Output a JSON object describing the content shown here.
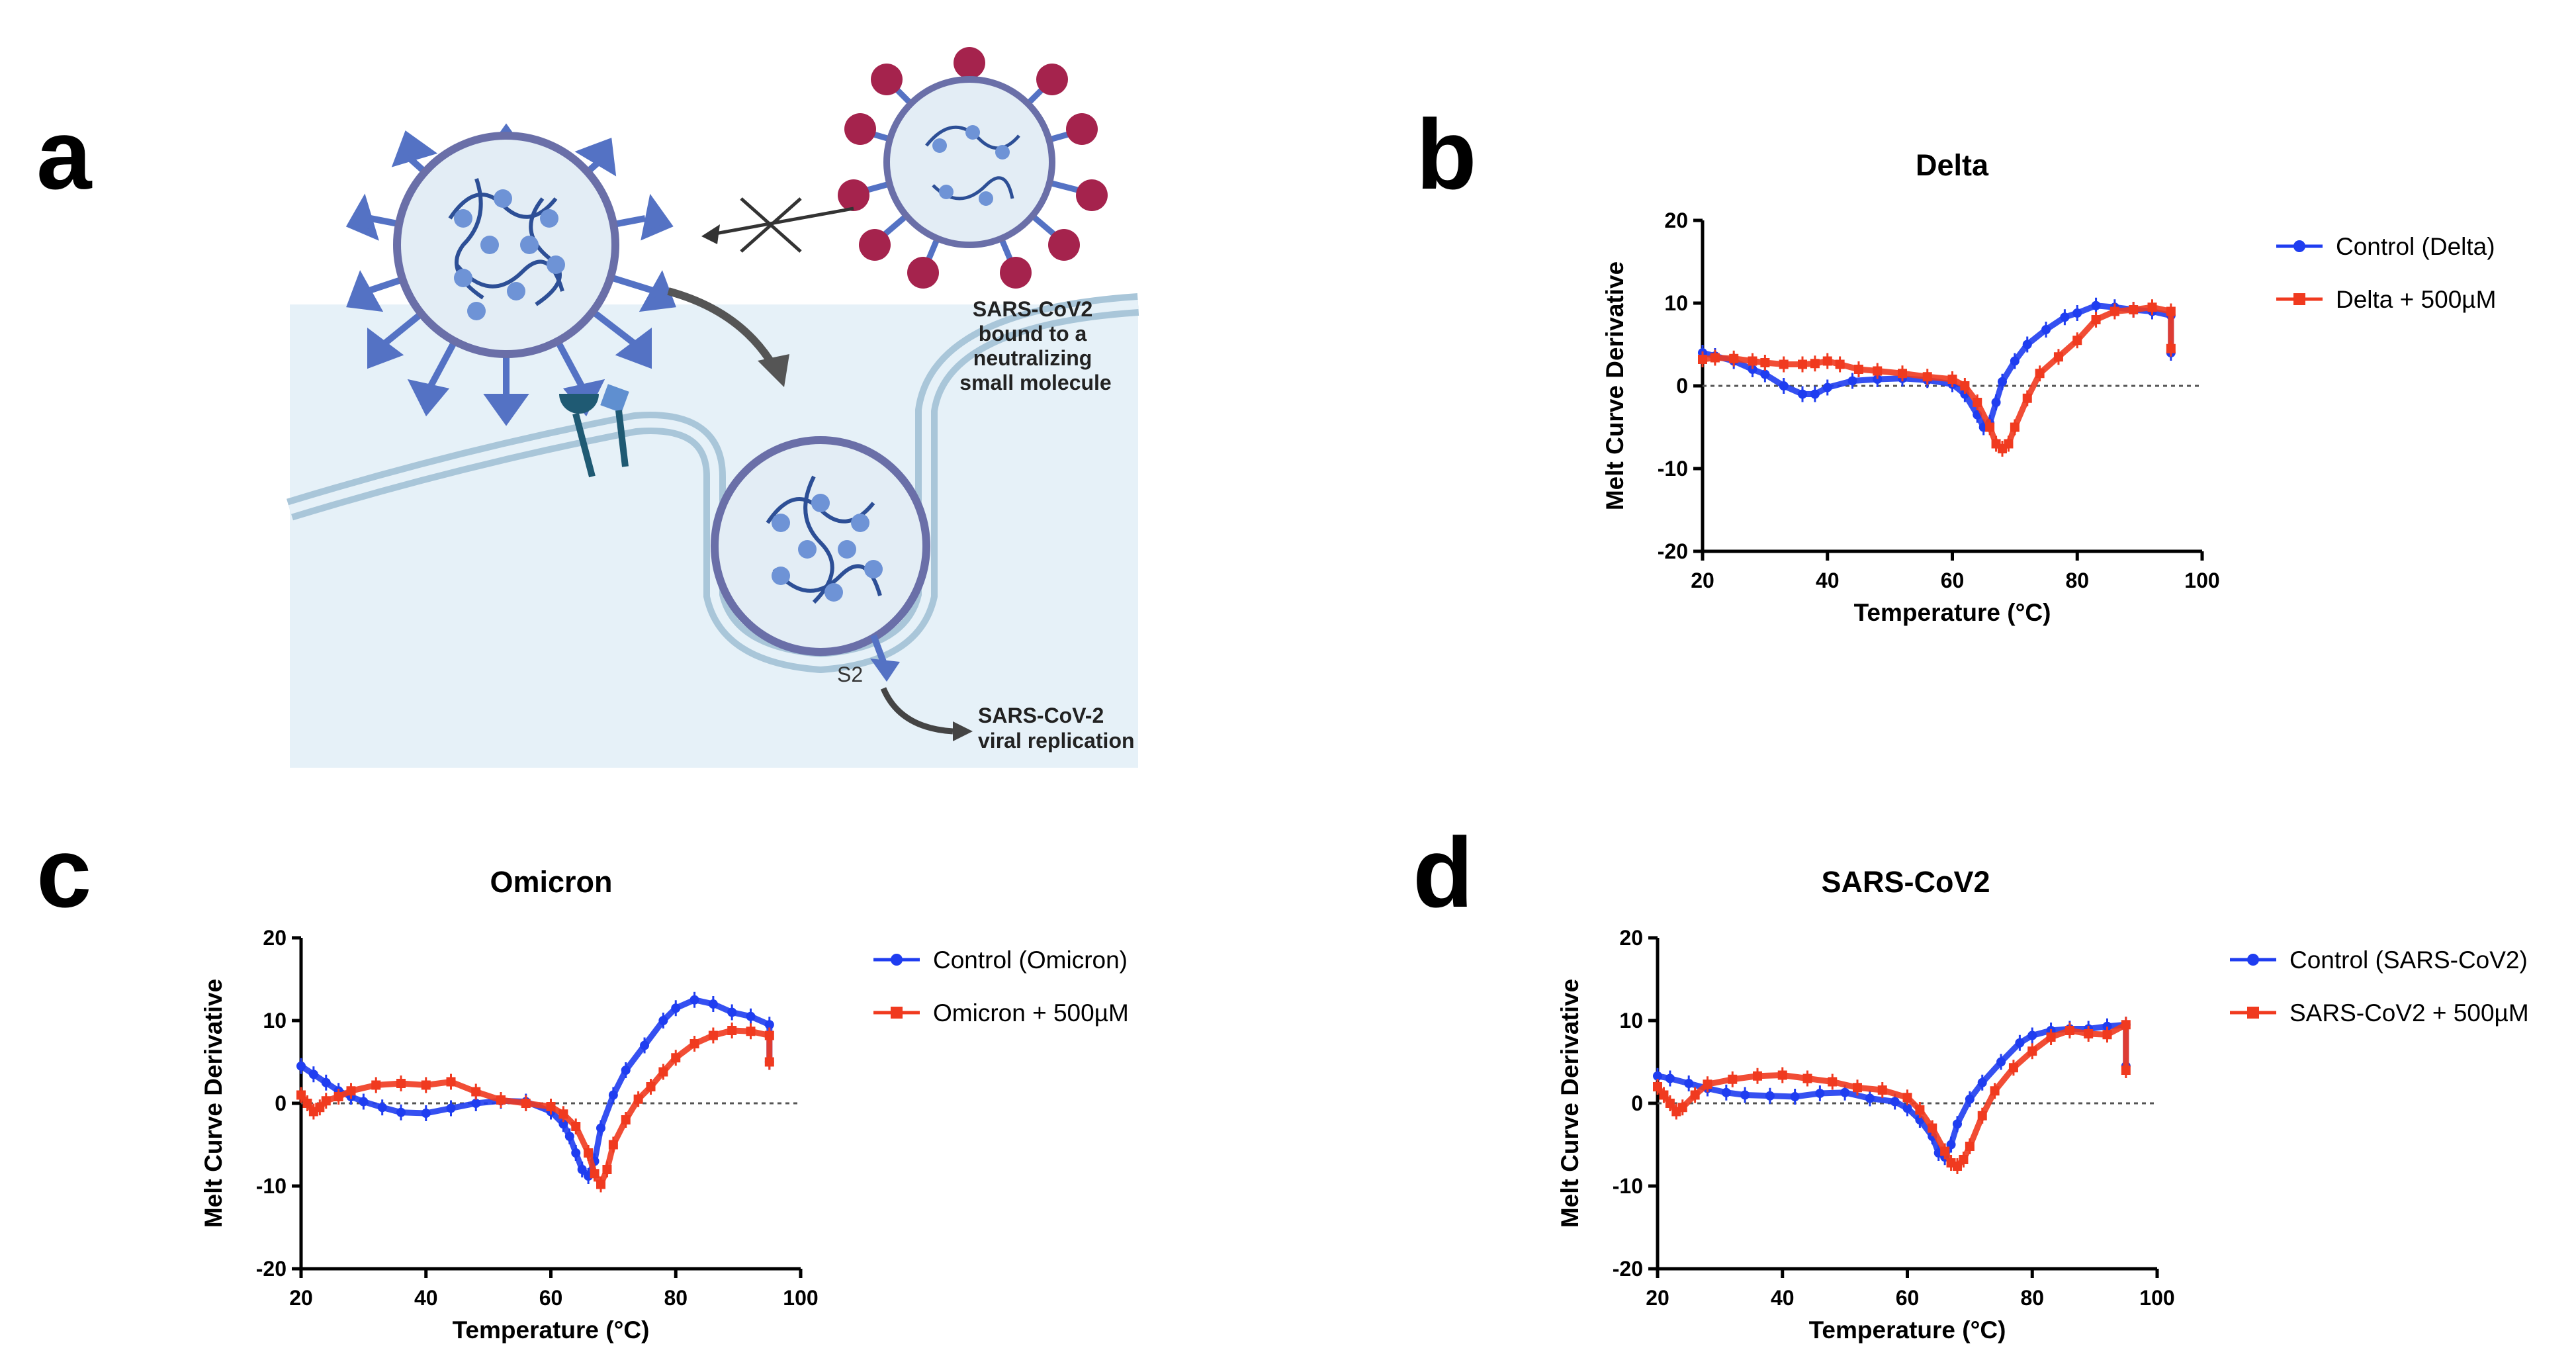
{
  "panel_letters": [
    "a",
    "b",
    "c",
    "d"
  ],
  "diagram": {
    "label_neutralized_lines": [
      "SARS-CoV2",
      "bound to a",
      "neutralizing",
      "small molecule"
    ],
    "label_s2": "S2",
    "label_replication_lines": [
      "SARS-CoV-2",
      "viral replication"
    ],
    "colors": {
      "membrane": "#a9c6d9",
      "cell_fill": "#e6f1f8",
      "virus_body": "#e3edf5",
      "spike": "#5472c4",
      "molecule": "#a5234d",
      "receptor": "#1f5a73"
    }
  },
  "colors": {
    "control": "#1f3df0",
    "treated": "#f03a1f",
    "zero_line": "#555555"
  },
  "chart_data": [
    {
      "panel": "b",
      "type": "line",
      "title": "Delta",
      "xlabel": "Temperature (°C)",
      "ylabel": "Melt Curve Derivative",
      "xlim": [
        20,
        100
      ],
      "ylim": [
        -20,
        20
      ],
      "xticks": [
        20,
        40,
        60,
        80,
        100
      ],
      "yticks": [
        -20,
        -10,
        0,
        10,
        20
      ],
      "zero_line": true,
      "legend_position": "right",
      "series": [
        {
          "name": "Control (Delta)",
          "color": "#1f3df0",
          "marker": "circle",
          "x": [
            20,
            22,
            25,
            28,
            30,
            33,
            36,
            38,
            40,
            44,
            48,
            52,
            56,
            60,
            62,
            64,
            65,
            66,
            67,
            68,
            70,
            72,
            75,
            78,
            80,
            83,
            86,
            89,
            92,
            95,
            95
          ],
          "y": [
            4,
            3.6,
            3,
            2,
            1.4,
            0,
            -1,
            -1,
            -0.2,
            0.6,
            0.8,
            0.9,
            0.7,
            0.2,
            -1,
            -3.5,
            -5,
            -4.5,
            -2,
            0.5,
            3,
            5,
            6.8,
            8.3,
            8.8,
            9.7,
            9.5,
            9.2,
            9,
            8.5,
            4
          ]
        },
        {
          "name": "Delta + 500µM",
          "color": "#f03a1f",
          "marker": "square",
          "x": [
            20,
            22,
            25,
            28,
            30,
            33,
            36,
            38,
            40,
            42,
            45,
            48,
            52,
            56,
            60,
            62,
            64,
            66,
            67,
            68,
            69,
            70,
            72,
            74,
            77,
            80,
            83,
            86,
            89,
            92,
            95,
            95
          ],
          "y": [
            3.2,
            3.4,
            3.3,
            3,
            2.8,
            2.6,
            2.6,
            2.7,
            3,
            2.6,
            2,
            1.8,
            1.5,
            1.1,
            0.8,
            0,
            -2,
            -5,
            -7,
            -7.6,
            -7,
            -5,
            -1.5,
            1.5,
            3.5,
            5.5,
            8,
            9,
            9.2,
            9.5,
            9,
            4.5
          ]
        }
      ]
    },
    {
      "panel": "c",
      "type": "line",
      "title": "Omicron",
      "xlabel": "Temperature (°C)",
      "ylabel": "Melt Curve Derivative",
      "xlim": [
        20,
        100
      ],
      "ylim": [
        -20,
        20
      ],
      "xticks": [
        20,
        40,
        60,
        80,
        100
      ],
      "yticks": [
        -20,
        -10,
        0,
        10,
        20
      ],
      "zero_line": true,
      "legend_position": "right",
      "series": [
        {
          "name": "Control (Omicron)",
          "color": "#1f3df0",
          "marker": "circle",
          "x": [
            20,
            22,
            24,
            26,
            28,
            30,
            33,
            36,
            40,
            44,
            48,
            52,
            56,
            60,
            62,
            63,
            64,
            65,
            66,
            67,
            68,
            70,
            72,
            75,
            78,
            80,
            83,
            86,
            89,
            92,
            95,
            95
          ],
          "y": [
            4.5,
            3.5,
            2.5,
            1.5,
            0.8,
            0.2,
            -0.5,
            -1.1,
            -1.2,
            -0.6,
            0,
            0.3,
            0.2,
            -1,
            -2.5,
            -4,
            -6,
            -8,
            -8.8,
            -7,
            -3,
            1,
            4,
            7,
            10,
            11.5,
            12.5,
            12,
            11,
            10.5,
            9.5,
            5
          ]
        },
        {
          "name": "Omicron + 500µM",
          "color": "#f03a1f",
          "marker": "square",
          "x": [
            20,
            21,
            22,
            23,
            24,
            26,
            28,
            32,
            36,
            40,
            44,
            48,
            52,
            56,
            60,
            62,
            64,
            66,
            67,
            68,
            69,
            70,
            72,
            74,
            76,
            78,
            80,
            83,
            86,
            89,
            92,
            95,
            95
          ],
          "y": [
            1,
            0,
            -1,
            -0.5,
            0.3,
            0.8,
            1.5,
            2.2,
            2.4,
            2.2,
            2.6,
            1.4,
            0.4,
            0,
            -0.4,
            -1.3,
            -2.8,
            -6,
            -8.5,
            -9.8,
            -8,
            -5,
            -2,
            0.5,
            2,
            3.8,
            5.5,
            7.2,
            8.2,
            8.8,
            8.7,
            8.2,
            5
          ]
        }
      ]
    },
    {
      "panel": "d",
      "type": "line",
      "title": "SARS-CoV2",
      "xlabel": "Temperature (°C)",
      "ylabel": "Melt Curve Derivative",
      "xlim": [
        20,
        100
      ],
      "ylim": [
        -20,
        20
      ],
      "xticks": [
        20,
        40,
        60,
        80,
        100
      ],
      "yticks": [
        -20,
        -10,
        0,
        10,
        20
      ],
      "zero_line": true,
      "legend_position": "right",
      "series": [
        {
          "name": "Control (SARS-CoV2)",
          "color": "#1f3df0",
          "marker": "circle",
          "x": [
            20,
            22,
            25,
            28,
            31,
            34,
            38,
            42,
            46,
            50,
            54,
            58,
            60,
            62,
            64,
            65,
            66,
            67,
            68,
            70,
            72,
            75,
            78,
            80,
            83,
            86,
            89,
            92,
            95,
            95
          ],
          "y": [
            3.3,
            3,
            2.4,
            1.8,
            1.3,
            1,
            0.9,
            0.8,
            1.2,
            1.3,
            0.6,
            0.2,
            -0.6,
            -2,
            -4,
            -6,
            -6.5,
            -5,
            -2.5,
            0.5,
            2.5,
            5,
            7.3,
            8.2,
            8.8,
            9,
            9,
            9.3,
            9.5,
            4.5
          ]
        },
        {
          "name": "SARS-CoV2 + 500µM",
          "color": "#f03a1f",
          "marker": "square",
          "x": [
            20,
            21,
            22,
            23,
            24,
            26,
            28,
            32,
            36,
            40,
            44,
            48,
            52,
            56,
            60,
            62,
            64,
            66,
            67,
            68,
            69,
            70,
            72,
            74,
            77,
            80,
            83,
            86,
            89,
            92,
            95,
            95
          ],
          "y": [
            2,
            1,
            0,
            -1,
            -0.5,
            1,
            2.3,
            2.9,
            3.3,
            3.4,
            3,
            2.6,
            1.9,
            1.6,
            0.7,
            -0.8,
            -3,
            -5.8,
            -7.2,
            -7.6,
            -6.8,
            -5.2,
            -1.5,
            1.5,
            4.3,
            6.3,
            8,
            8.8,
            8.4,
            8.3,
            9.5,
            4
          ]
        }
      ]
    }
  ]
}
